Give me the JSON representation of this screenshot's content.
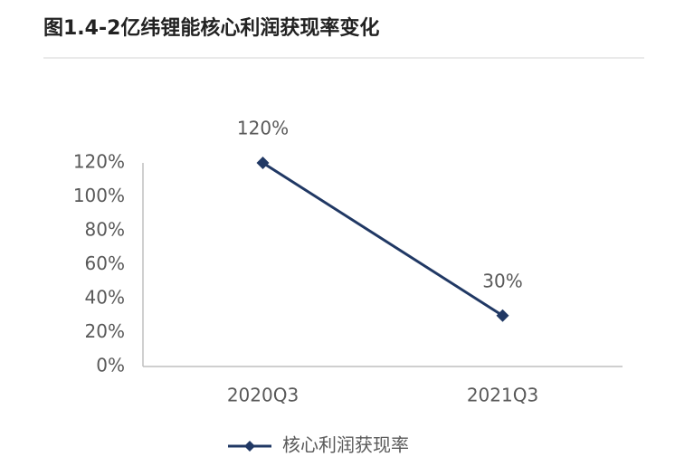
{
  "chart_data": {
    "type": "line",
    "title": "图1.4-2亿纬锂能核心利润获现率变化",
    "categories": [
      "2020Q3",
      "2021Q3"
    ],
    "series": [
      {
        "name": "核心利润获现率",
        "color": "#203864",
        "values": [
          120,
          30
        ],
        "value_labels": [
          "120%",
          "30%"
        ]
      }
    ],
    "ylim": [
      0,
      120
    ],
    "yticks": [
      {
        "value": 0,
        "label": "0%"
      },
      {
        "value": 20,
        "label": "20%"
      },
      {
        "value": 40,
        "label": "40%"
      },
      {
        "value": 60,
        "label": "60%"
      },
      {
        "value": 80,
        "label": "80%"
      },
      {
        "value": 100,
        "label": "100%"
      },
      {
        "value": 120,
        "label": "120%"
      }
    ],
    "legend": "bottom"
  }
}
